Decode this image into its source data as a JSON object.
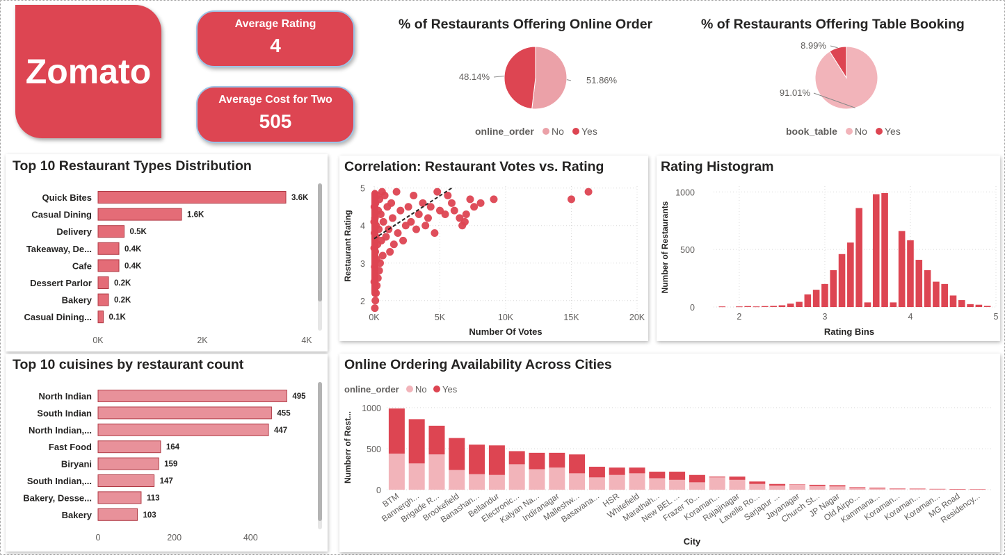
{
  "logo": {
    "text": "Zomato"
  },
  "kpis": {
    "avg_rating": {
      "label": "Average Rating",
      "value": "4"
    },
    "avg_cost": {
      "label": "Average Cost for Two",
      "value": "505"
    }
  },
  "titles": {
    "online_pie": "% of Restaurants Offering Online Order",
    "table_pie": "% of Restaurants Offering Table Booking",
    "rest_types": "Top 10 Restaurant Types Distribution",
    "cuisines": "Top 10 cuisines by restaurant count",
    "scatter": "Correlation: Restaurant Votes vs. Rating",
    "histogram": "Rating Histogram",
    "cities": "Online Ordering Availability Across Cities"
  },
  "colors": {
    "primary": "#dd4552",
    "light": "#eba1a8",
    "pale": "#f2b4ba",
    "bar_type": "#e46c77",
    "bar_cuisine": "#e8919a"
  },
  "chart_data": [
    {
      "id": "online_pie",
      "type": "pie",
      "legend_title": "online_order",
      "slices": [
        {
          "label": "No",
          "value": 51.86,
          "text": "51.86%"
        },
        {
          "label": "Yes",
          "value": 48.14,
          "text": "48.14%"
        }
      ]
    },
    {
      "id": "table_pie",
      "type": "pie",
      "legend_title": "book_table",
      "slices": [
        {
          "label": "No",
          "value": 91.01,
          "text": "91.01%"
        },
        {
          "label": "Yes",
          "value": 8.99,
          "text": "8.99%"
        }
      ]
    },
    {
      "id": "rest_types",
      "type": "bar",
      "orientation": "horizontal",
      "categories": [
        "Quick Bites",
        "Casual Dining",
        "Delivery",
        "Takeaway, De...",
        "Cafe",
        "Dessert Parlor",
        "Bakery",
        "Casual Dining..."
      ],
      "values": [
        3600,
        1600,
        500,
        400,
        400,
        200,
        200,
        100
      ],
      "labels": [
        "3.6K",
        "1.6K",
        "0.5K",
        "0.4K",
        "0.4K",
        "0.2K",
        "0.2K",
        "0.1K"
      ],
      "xlim": [
        0,
        4200
      ],
      "xticks": [
        0,
        2000,
        4000
      ],
      "xticklabels": [
        "0K",
        "2K",
        "4K"
      ]
    },
    {
      "id": "cuisines",
      "type": "bar",
      "orientation": "horizontal",
      "categories": [
        "North Indian",
        "South Indian",
        "North Indian,...",
        "Fast Food",
        "Biryani",
        "South Indian,...",
        "Bakery, Desse...",
        "Bakery"
      ],
      "values": [
        495,
        455,
        447,
        164,
        159,
        147,
        113,
        103
      ],
      "labels": [
        "495",
        "455",
        "447",
        "164",
        "159",
        "147",
        "113",
        "103"
      ],
      "xlim": [
        0,
        540
      ],
      "xticks": [
        0,
        200,
        400
      ],
      "xticklabels": [
        "0",
        "200",
        "400"
      ]
    },
    {
      "id": "scatter",
      "type": "scatter",
      "xlabel": "Number Of Votes",
      "ylabel": "Restaurant Rating",
      "xlim": [
        0,
        20000
      ],
      "ylim": [
        1.7,
        5.05
      ],
      "xticks": [
        0,
        5000,
        10000,
        15000,
        20000
      ],
      "xticklabels": [
        "0K",
        "5K",
        "10K",
        "15K",
        "20K"
      ],
      "yticks": [
        2,
        3,
        4,
        5
      ],
      "yticklabels": [
        "2",
        "3",
        "4",
        "5"
      ],
      "trend": {
        "x": [
          0,
          5900
        ],
        "y": [
          3.65,
          5.0
        ]
      },
      "points": [
        [
          16300,
          4.9
        ],
        [
          15000,
          4.7
        ],
        [
          9100,
          4.7
        ],
        [
          8100,
          4.6
        ],
        [
          7600,
          4.5
        ],
        [
          7300,
          4.7
        ],
        [
          7000,
          4.3
        ],
        [
          6900,
          4.1
        ],
        [
          6700,
          4.0
        ],
        [
          6500,
          4.2
        ],
        [
          6100,
          4.4
        ],
        [
          5900,
          4.6
        ],
        [
          5600,
          4.8
        ],
        [
          5400,
          4.3
        ],
        [
          5000,
          4.4
        ],
        [
          4800,
          4.9
        ],
        [
          4600,
          3.8
        ],
        [
          4300,
          4.5
        ],
        [
          4100,
          4.2
        ],
        [
          3900,
          4.0
        ],
        [
          3700,
          4.6
        ],
        [
          3400,
          4.3
        ],
        [
          3200,
          3.9
        ],
        [
          3000,
          4.8
        ],
        [
          2800,
          4.1
        ],
        [
          2600,
          4.5
        ],
        [
          2400,
          4.0
        ],
        [
          2200,
          3.6
        ],
        [
          2000,
          4.4
        ],
        [
          1800,
          3.8
        ],
        [
          1700,
          4.9
        ],
        [
          1500,
          3.5
        ],
        [
          1400,
          4.2
        ],
        [
          1300,
          4.6
        ],
        [
          1200,
          3.3
        ],
        [
          1100,
          3.9
        ],
        [
          1000,
          4.5
        ],
        [
          900,
          3.7
        ],
        [
          800,
          4.8
        ],
        [
          700,
          4.1
        ],
        [
          650,
          3.2
        ],
        [
          600,
          4.9
        ],
        [
          550,
          3.6
        ],
        [
          500,
          4.3
        ],
        [
          450,
          3.0
        ],
        [
          400,
          4.7
        ],
        [
          380,
          2.8
        ],
        [
          350,
          3.9
        ],
        [
          300,
          4.4
        ],
        [
          280,
          2.6
        ],
        [
          250,
          3.5
        ],
        [
          220,
          4.8
        ],
        [
          200,
          2.4
        ],
        [
          180,
          3.1
        ],
        [
          150,
          4.0
        ],
        [
          140,
          2.2
        ],
        [
          120,
          3.7
        ],
        [
          100,
          4.6
        ],
        [
          90,
          2.0
        ],
        [
          80,
          3.3
        ],
        [
          60,
          4.2
        ],
        [
          50,
          1.8
        ],
        [
          40,
          2.9
        ],
        [
          30,
          3.8
        ],
        [
          20,
          4.5
        ],
        [
          10,
          2.5
        ],
        [
          5,
          3.4
        ],
        [
          0,
          4.1
        ]
      ]
    },
    {
      "id": "histogram",
      "type": "bar",
      "xlabel": "Rating Bins",
      "ylabel": "Number of Restaurants",
      "xlim": [
        1.7,
        5.0
      ],
      "ylim": [
        0,
        1050
      ],
      "xticks": [
        2,
        3,
        4,
        5
      ],
      "xticklabels": [
        "2",
        "3",
        "4",
        "5"
      ],
      "yticks": [
        0,
        500,
        1000
      ],
      "yticklabels": [
        "0",
        "500",
        "1000"
      ],
      "bin_width": 0.1,
      "bins": [
        [
          1.8,
          5
        ],
        [
          2.0,
          5
        ],
        [
          2.1,
          8
        ],
        [
          2.2,
          5
        ],
        [
          2.3,
          8
        ],
        [
          2.4,
          10
        ],
        [
          2.5,
          15
        ],
        [
          2.6,
          30
        ],
        [
          2.7,
          45
        ],
        [
          2.8,
          110
        ],
        [
          2.9,
          150
        ],
        [
          3.0,
          200
        ],
        [
          3.1,
          320
        ],
        [
          3.2,
          460
        ],
        [
          3.3,
          560
        ],
        [
          3.4,
          860
        ],
        [
          3.5,
          40
        ],
        [
          3.6,
          980
        ],
        [
          3.7,
          990
        ],
        [
          3.8,
          40
        ],
        [
          3.9,
          660
        ],
        [
          4.0,
          580
        ],
        [
          4.1,
          410
        ],
        [
          4.2,
          320
        ],
        [
          4.3,
          220
        ],
        [
          4.4,
          200
        ],
        [
          4.5,
          100
        ],
        [
          4.6,
          60
        ],
        [
          4.7,
          25
        ],
        [
          4.8,
          20
        ],
        [
          4.9,
          10
        ]
      ]
    },
    {
      "id": "cities",
      "type": "bar",
      "stacked": true,
      "xlabel": "City",
      "ylabel": "Numberr of Rest...",
      "legend_title": "online_order",
      "series_labels": [
        "No",
        "Yes"
      ],
      "ylim": [
        0,
        1050
      ],
      "yticks": [
        0,
        500,
        1000
      ],
      "yticklabels": [
        "0",
        "500",
        "1000"
      ],
      "categories": [
        "BTM",
        "Bannergh...",
        "Brigade R...",
        "Brookefield",
        "Banashan...",
        "Bellandur",
        "Electronic...",
        "Kalyan Na...",
        "Indiranagar",
        "Malleshw...",
        "Basavana...",
        "HSR",
        "Whitefield",
        "Marathah...",
        "New BEL ...",
        "Frazer To...",
        "Koraman...",
        "Rajajinagar",
        "Lavelle Ro...",
        "Sarjapur ...",
        "Jayanagar",
        "Church St...",
        "JP Nagar",
        "Old Airpo...",
        "Kammana...",
        "Koraman...",
        "Koraman...",
        "Koraman...",
        "MG Road",
        "Residency..."
      ],
      "series": [
        {
          "name": "No",
          "values": [
            440,
            320,
            430,
            240,
            190,
            180,
            310,
            250,
            270,
            200,
            150,
            180,
            200,
            140,
            120,
            90,
            150,
            120,
            70,
            50,
            60,
            45,
            40,
            20,
            15,
            10,
            8,
            6,
            5,
            4
          ]
        },
        {
          "name": "Yes",
          "values": [
            550,
            540,
            350,
            390,
            360,
            360,
            160,
            200,
            180,
            230,
            130,
            90,
            70,
            80,
            100,
            90,
            10,
            40,
            30,
            20,
            5,
            15,
            15,
            10,
            10,
            5,
            5,
            4,
            3,
            2
          ]
        }
      ]
    }
  ]
}
